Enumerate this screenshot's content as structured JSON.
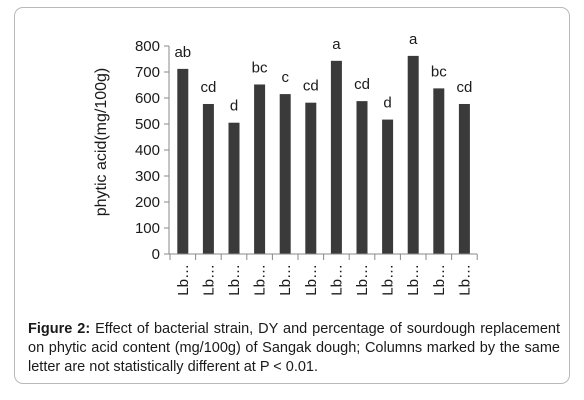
{
  "chart_data": {
    "type": "bar",
    "ylabel": "phytic acid(mg/100g)",
    "xlabel": "",
    "ylim": [
      0,
      800
    ],
    "yticks": [
      0,
      100,
      200,
      300,
      400,
      500,
      600,
      700,
      800
    ],
    "categories": [
      "Lb…",
      "Lb…",
      "Lb…",
      "Lb…",
      "Lb…",
      "Lb…",
      "Lb…",
      "Lb…",
      "Lb…",
      "Lb…",
      "Lb…",
      "Lb…"
    ],
    "values": [
      712,
      577,
      505,
      652,
      615,
      582,
      743,
      588,
      517,
      762,
      637,
      577
    ],
    "letters": [
      "ab",
      "cd",
      "d",
      "bc",
      "c",
      "cd",
      "a",
      "cd",
      "d",
      "a",
      "bc",
      "cd"
    ],
    "bar_color": "#3a3a3a",
    "grid": false
  },
  "caption": {
    "label": "Figure 2:",
    "text": " Effect of bacterial strain, DY and percentage of sourdough replacement on phytic acid content (mg/100g) of Sangak dough; Columns marked by the same letter are not statistically different at  P < 0.01."
  }
}
